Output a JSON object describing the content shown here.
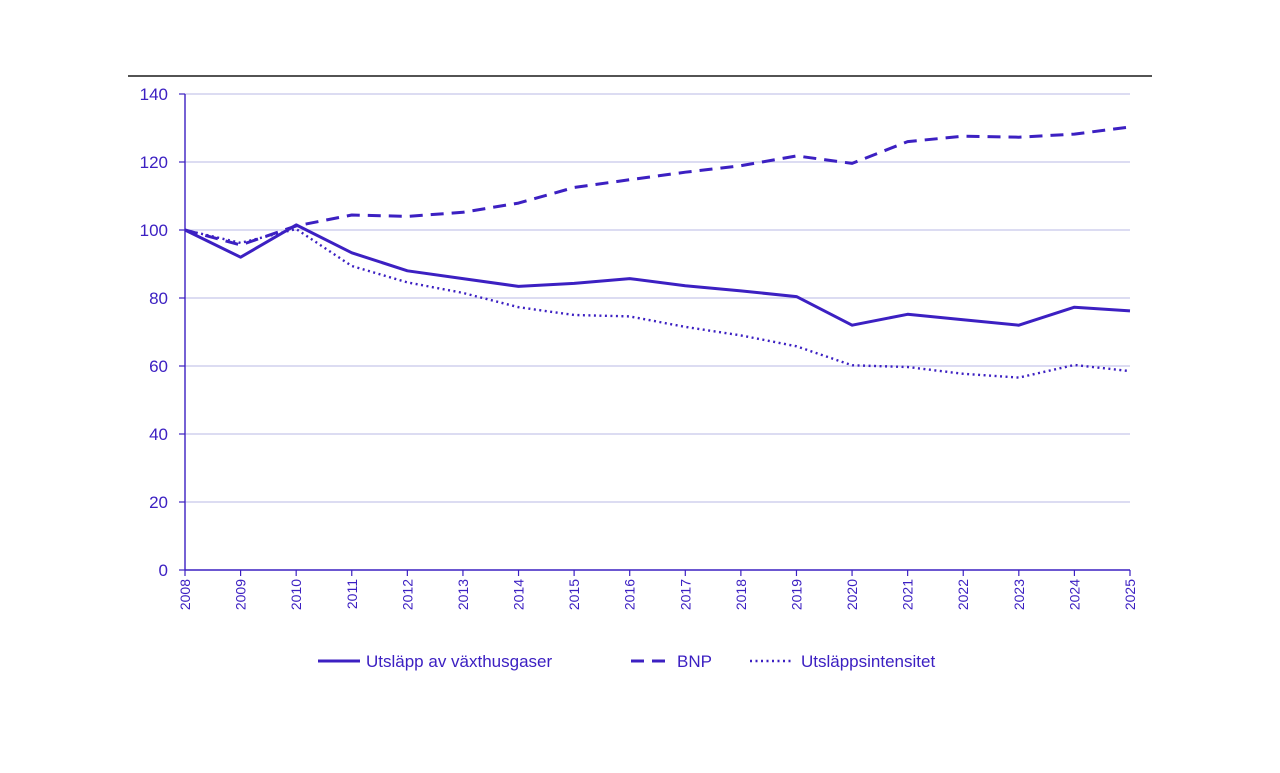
{
  "chart_data": {
    "type": "line",
    "title": "",
    "xlabel": "",
    "ylabel": "",
    "ylim": [
      0,
      140
    ],
    "yticks": [
      0,
      20,
      40,
      60,
      80,
      100,
      120,
      140
    ],
    "x": [
      "2008",
      "2009",
      "2010",
      "2011",
      "2012",
      "2013",
      "2014",
      "2015",
      "2016",
      "2017",
      "2018",
      "2019",
      "2020",
      "2021",
      "2022",
      "2023",
      "2024",
      "2025"
    ],
    "grid": true,
    "legend_position": "bottom",
    "series": [
      {
        "name": "Utsläpp av växthusgaser",
        "style": "solid",
        "values": [
          100,
          92,
          101.5,
          93.3,
          88,
          85.7,
          83.4,
          84.3,
          85.7,
          83.6,
          82.1,
          80.4,
          72,
          75.2,
          73.6,
          72,
          77.3,
          76.2
        ]
      },
      {
        "name": "BNP",
        "style": "dashed",
        "values": [
          100,
          95.6,
          101.2,
          104.4,
          104,
          105.2,
          107.9,
          112.5,
          114.8,
          117,
          118.9,
          121.8,
          119.6,
          126,
          127.6,
          127.3,
          128.2,
          130.3
        ]
      },
      {
        "name": "Utsläppsintensitet",
        "style": "dotted",
        "values": [
          100,
          96.2,
          100.3,
          89.4,
          84.6,
          81.5,
          77.3,
          75,
          74.6,
          71.5,
          69,
          65.8,
          60.2,
          59.7,
          57.7,
          56.6,
          60.3,
          58.5
        ]
      }
    ]
  },
  "colors": {
    "series": "#3c20c2",
    "grid": "#c8c8ea",
    "axis": "#3c20c2",
    "top_rule": "#1a1a1a",
    "text": "#3c20c2"
  }
}
